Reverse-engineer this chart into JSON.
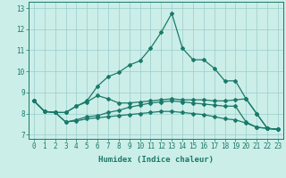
{
  "xlabel": "Humidex (Indice chaleur)",
  "background_color": "#cceee8",
  "grid_color": "#99cccc",
  "line_color": "#1a7a6a",
  "xlim": [
    -0.5,
    23.5
  ],
  "ylim": [
    6.8,
    13.3
  ],
  "xticks": [
    0,
    1,
    2,
    3,
    4,
    5,
    6,
    7,
    8,
    9,
    10,
    11,
    12,
    13,
    14,
    15,
    16,
    17,
    18,
    19,
    20,
    21,
    22,
    23
  ],
  "yticks": [
    7,
    8,
    9,
    10,
    11,
    12,
    13
  ],
  "line_main_x": [
    0,
    1,
    2,
    3,
    4,
    5,
    6,
    7,
    8,
    9,
    10,
    11,
    12,
    13,
    14,
    15,
    16,
    17,
    18,
    19,
    20,
    21,
    22,
    23
  ],
  "line_main_y": [
    8.6,
    8.1,
    8.05,
    8.05,
    8.35,
    8.6,
    9.3,
    9.75,
    9.95,
    10.3,
    10.5,
    11.1,
    11.85,
    12.75,
    11.1,
    10.55,
    10.55,
    10.15,
    9.55,
    9.55,
    8.7,
    8.0,
    7.3,
    7.25
  ],
  "line_upper_x": [
    0,
    1,
    2,
    3,
    4,
    5,
    6,
    7,
    8,
    9,
    10,
    11,
    12,
    13,
    14,
    15,
    16,
    17,
    18,
    19,
    20,
    21,
    22,
    23
  ],
  "line_upper_y": [
    8.6,
    8.1,
    8.05,
    8.05,
    8.35,
    8.55,
    8.85,
    8.7,
    8.5,
    8.5,
    8.55,
    8.6,
    8.65,
    8.7,
    8.65,
    8.65,
    8.65,
    8.6,
    8.6,
    8.65,
    8.7,
    8.0,
    7.3,
    7.25
  ],
  "line_mid_x": [
    0,
    1,
    2,
    3,
    4,
    5,
    6,
    7,
    8,
    9,
    10,
    11,
    12,
    13,
    14,
    15,
    16,
    17,
    18,
    19,
    20,
    21,
    22,
    23
  ],
  "line_mid_y": [
    8.6,
    8.1,
    8.05,
    7.6,
    7.7,
    7.85,
    7.9,
    8.05,
    8.15,
    8.3,
    8.4,
    8.5,
    8.55,
    8.6,
    8.55,
    8.5,
    8.45,
    8.4,
    8.35,
    8.35,
    7.6,
    7.35,
    7.3,
    7.25
  ],
  "line_low_x": [
    0,
    1,
    2,
    3,
    4,
    5,
    6,
    7,
    8,
    9,
    10,
    11,
    12,
    13,
    14,
    15,
    16,
    17,
    18,
    19,
    20,
    21,
    22,
    23
  ],
  "line_low_y": [
    8.6,
    8.1,
    8.05,
    7.6,
    7.65,
    7.75,
    7.8,
    7.85,
    7.9,
    7.95,
    8.0,
    8.05,
    8.1,
    8.1,
    8.05,
    8.0,
    7.95,
    7.85,
    7.75,
    7.7,
    7.55,
    7.35,
    7.3,
    7.25
  ],
  "marker": "D",
  "markersize": 2.0,
  "linewidth": 0.9,
  "label_fontsize": 6.5,
  "tick_fontsize": 5.5
}
